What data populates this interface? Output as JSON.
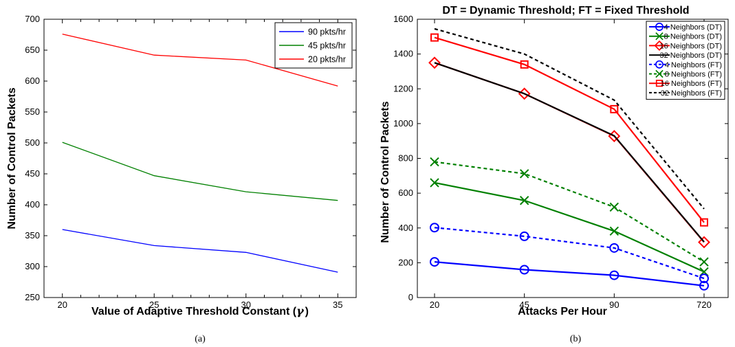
{
  "chart_data": [
    {
      "type": "line",
      "panel_caption": "(a)",
      "title": "",
      "xlabel": "Value of Adaptive Threshold Constant (",
      "xlabel_symbol": "γ",
      "xlabel_close": ")",
      "ylabel": "Number of Control Packets",
      "x": [
        20,
        25,
        30,
        35
      ],
      "x_ticks": [
        "20",
        "25",
        "30",
        "35"
      ],
      "xlim": [
        19,
        36
      ],
      "ylim": [
        250,
        700
      ],
      "y_ticks": [
        250,
        300,
        350,
        400,
        450,
        500,
        550,
        600,
        650,
        700
      ],
      "grid": false,
      "legend_position": "top-right",
      "series": [
        {
          "name": "90 pkts/hr",
          "color": "#0000ff",
          "values": [
            360,
            334,
            323,
            291
          ]
        },
        {
          "name": "45 pkts/hr",
          "color": "#008000",
          "values": [
            501,
            447,
            421,
            407
          ]
        },
        {
          "name": "20 pkts/hr",
          "color": "#ff0000",
          "values": [
            676,
            642,
            634,
            592
          ]
        }
      ]
    },
    {
      "type": "line",
      "panel_caption": "(b)",
      "title": "DT = Dynamic Threshold; FT = Fixed Threshold",
      "xlabel": "Attacks Per Hour",
      "ylabel": "Number of Control Packets",
      "categories": [
        "20",
        "45",
        "90",
        "720"
      ],
      "ylim": [
        0,
        1600
      ],
      "y_ticks": [
        0,
        200,
        400,
        600,
        800,
        1000,
        1200,
        1400,
        1600
      ],
      "grid": false,
      "legend_position": "top-right",
      "series": [
        {
          "name": "4 Neighbors (DT)",
          "color": "#0000ff",
          "dash": "solid",
          "marker": "circle",
          "values": [
            205,
            160,
            128,
            68
          ]
        },
        {
          "name": "8 Neighbors (DT)",
          "color": "#008000",
          "dash": "solid",
          "marker": "x",
          "values": [
            660,
            558,
            382,
            148
          ]
        },
        {
          "name": "16 Neighbors (DT)",
          "color": "#ff0000",
          "dash": "solid",
          "marker": "diamond",
          "values": [
            1350,
            1172,
            928,
            318
          ]
        },
        {
          "name": "32 Neighbors (DT)",
          "color": "#000000",
          "dash": "solid",
          "marker": "none",
          "values": [
            1350,
            1172,
            930,
            320
          ]
        },
        {
          "name": "4 Neighbors (FT)",
          "color": "#0000ff",
          "dash": "dashed",
          "marker": "circle",
          "values": [
            402,
            352,
            285,
            110
          ]
        },
        {
          "name": "8 Neighbors (FT)",
          "color": "#008000",
          "dash": "dashed",
          "marker": "x",
          "values": [
            780,
            712,
            520,
            205
          ]
        },
        {
          "name": "16 Neighbors (FT)",
          "color": "#ff0000",
          "dash": "solid",
          "marker": "square",
          "values": [
            1495,
            1340,
            1083,
            432
          ]
        },
        {
          "name": "32 Neighbors (FT)",
          "color": "#000000",
          "dash": "dashed",
          "marker": "none",
          "values": [
            1545,
            1400,
            1135,
            510
          ]
        }
      ]
    }
  ]
}
